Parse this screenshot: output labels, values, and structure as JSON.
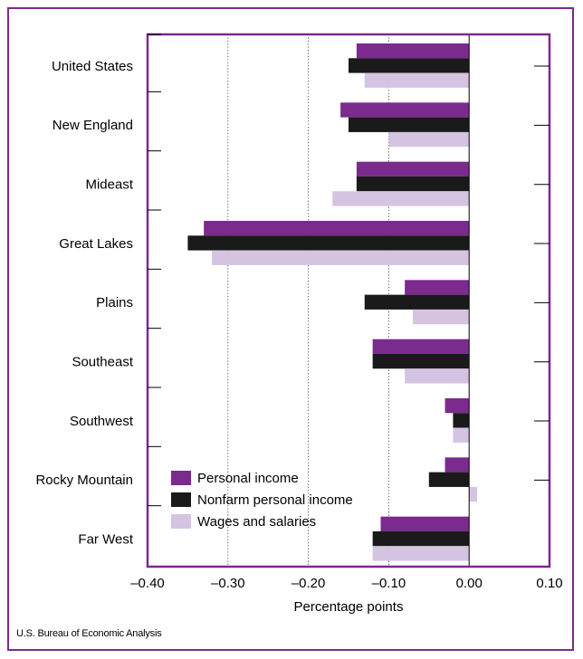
{
  "source": "U.S. Bureau of Economic Analysis",
  "colors": {
    "frame": "#7b2a8e",
    "personal_income": "#7b2a8e",
    "nonfarm": "#1a1a1a",
    "wages": "#d5c4e1"
  },
  "chart_data": {
    "type": "bar",
    "orientation": "horizontal",
    "categories": [
      "United States",
      "New England",
      "Mideast",
      "Great Lakes",
      "Plains",
      "Southeast",
      "Southwest",
      "Rocky Mountain",
      "Far West"
    ],
    "series": [
      {
        "name": "Personal income",
        "values": [
          -0.14,
          -0.16,
          -0.14,
          -0.33,
          -0.08,
          -0.12,
          -0.03,
          -0.03,
          -0.11
        ]
      },
      {
        "name": "Nonfarm personal income",
        "values": [
          -0.15,
          -0.15,
          -0.14,
          -0.35,
          -0.13,
          -0.12,
          -0.02,
          -0.05,
          -0.12
        ]
      },
      {
        "name": "Wages and salaries",
        "values": [
          -0.13,
          -0.1,
          -0.17,
          -0.32,
          -0.07,
          -0.08,
          -0.02,
          0.01,
          -0.12
        ]
      }
    ],
    "xlabel": "Percentage points",
    "xlim": [
      -0.4,
      0.1
    ],
    "xticks": [
      -0.4,
      -0.3,
      -0.2,
      -0.1,
      0.0,
      0.1
    ],
    "xtick_labels": [
      "–0.40",
      "–0.30",
      "–0.20",
      "–0.10",
      "0.00",
      "0.10"
    ],
    "gridlines": [
      -0.3,
      -0.2,
      -0.1
    ],
    "grid": "dotted vertical",
    "legend": "lower-left"
  }
}
